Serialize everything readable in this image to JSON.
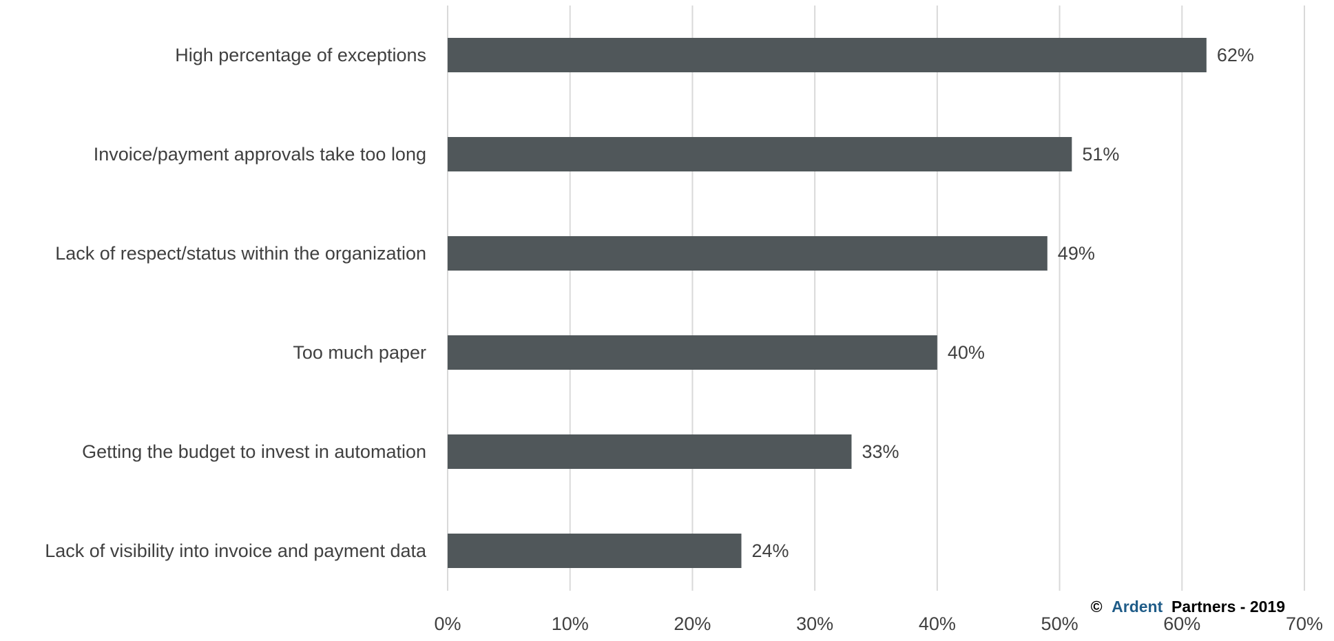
{
  "chart_data": {
    "type": "bar",
    "orientation": "horizontal",
    "categories": [
      "High percentage of exceptions",
      "Invoice/payment approvals take too long",
      "Lack of respect/status within the organization",
      "Too much paper",
      "Getting the budget to invest in automation",
      "Lack of visibility into invoice and payment data"
    ],
    "values": [
      62,
      51,
      49,
      40,
      33,
      24
    ],
    "data_labels": [
      "62%",
      "51%",
      "49%",
      "40%",
      "33%",
      "24%"
    ],
    "xlim": [
      0,
      70
    ],
    "x_ticks": [
      0,
      10,
      20,
      30,
      40,
      50,
      60,
      70
    ],
    "x_tick_labels": [
      "0%",
      "10%",
      "20%",
      "30%",
      "40%",
      "50%",
      "60%",
      "70%"
    ],
    "grid": "vertical",
    "legend": "none",
    "colors": {
      "bar": "#50575a",
      "gridline": "#d9d9d9",
      "text": "#404040",
      "brand": "#1f5c88"
    }
  },
  "credit": {
    "symbol": "©",
    "brand": "Ardent",
    "rest": " Partners - 2019"
  }
}
